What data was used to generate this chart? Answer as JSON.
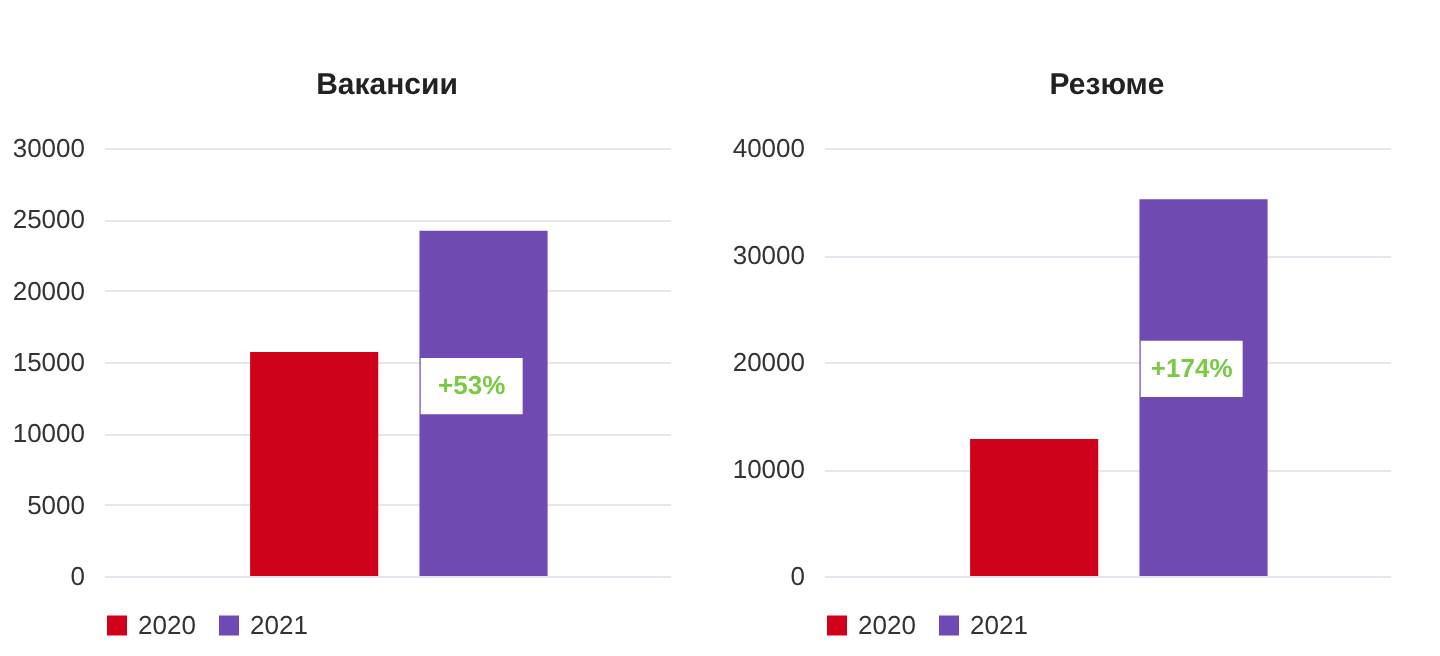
{
  "chart_data": [
    {
      "type": "bar",
      "title": "Вакансии",
      "categories": [
        null
      ],
      "series": [
        {
          "name": "2020",
          "color": "#d0021b",
          "values": [
            15700
          ]
        },
        {
          "name": "2021",
          "color": "#6f4ab3",
          "values": [
            24200
          ]
        }
      ],
      "ylim": [
        0,
        30000
      ],
      "yticks": [
        0,
        5000,
        10000,
        15000,
        20000,
        25000,
        30000
      ],
      "grid": "y",
      "legend": "bottom",
      "tick_labels": "y",
      "annotations": [
        "+53%"
      ]
    },
    {
      "type": "bar",
      "title": "Резюме",
      "categories": [
        null
      ],
      "series": [
        {
          "name": "2020",
          "color": "#d0021b",
          "values": [
            12800
          ]
        },
        {
          "name": "2021",
          "color": "#6f4ab3",
          "values": [
            35200
          ]
        }
      ],
      "ylim": [
        0,
        40000
      ],
      "yticks": [
        0,
        10000,
        20000,
        30000,
        40000
      ],
      "grid": "y",
      "legend": "bottom",
      "tick_labels": "y",
      "annotations": [
        "+174%"
      ]
    }
  ]
}
